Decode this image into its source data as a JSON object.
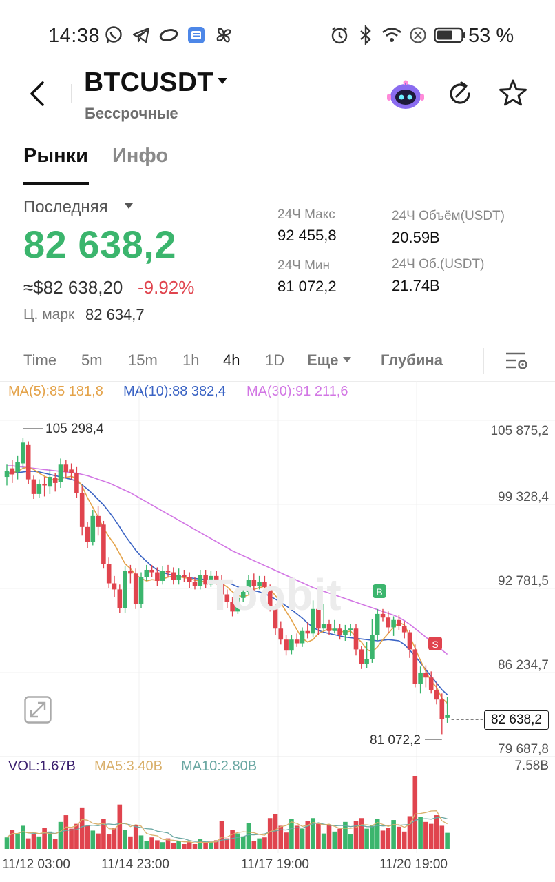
{
  "status_bar": {
    "time": "14:38",
    "battery": "53 %",
    "icons": [
      "whatsapp-icon",
      "telegram-icon",
      "ring-icon",
      "notes-app-icon",
      "pinwheel-icon",
      "alarm-icon",
      "bluetooth-icon",
      "wifi-icon",
      "dnd-icon",
      "battery-icon"
    ]
  },
  "header": {
    "pair": "BTCUSDT",
    "subtitle": "Бессрочные"
  },
  "tabs": [
    {
      "label": "Рынки",
      "active": true
    },
    {
      "label": "Инфо",
      "active": false
    }
  ],
  "ticker": {
    "last_label": "Последняя",
    "price": "82 638,2",
    "price_usd": "≈$82 638,20",
    "change": "-9.92%",
    "mark_label": "Ц. марк",
    "mark_value": "82 634,7",
    "stats": {
      "high_label": "24Ч Макс",
      "high_value": "92 455,8",
      "low_label": "24Ч Мин",
      "low_value": "81 072,2",
      "vol_usdt_label": "24Ч Объём(USDT)",
      "vol_usdt_value": "20.59B",
      "turnover_label": "24Ч Об.(USDT)",
      "turnover_value": "21.74B"
    },
    "colors": {
      "up": "#3bb56d",
      "down": "#e0444e"
    }
  },
  "timeframes": [
    "Time",
    "5m",
    "15m",
    "1h",
    "4h",
    "1D"
  ],
  "active_timeframe": "4h",
  "more_label": "Еще",
  "depth_label": "Глубина",
  "chart_data": {
    "type": "candlestick",
    "ma_legend": {
      "ma5": "MA(5):85 181,8",
      "ma10": "MA(10):88 382,4",
      "ma30": "MA(30):91 211,6"
    },
    "price_axis": [
      "105 875,2",
      "99 328,4",
      "92 781,5",
      "86 234,7",
      "79 687,8"
    ],
    "ylim": [
      79687.8,
      105875.2
    ],
    "high_annotation": "105 298,4",
    "low_annotation": "81 072,2",
    "current_price": "82 638,2",
    "markers": [
      "B",
      "S"
    ],
    "watermark": "Toobit",
    "candles": [
      [
        102100,
        102600,
        103100,
        101400
      ],
      [
        102800,
        102300,
        103500,
        101600
      ],
      [
        102500,
        103300,
        103800,
        101900
      ],
      [
        103200,
        104900,
        105298.4,
        102800
      ],
      [
        104700,
        101900,
        105000,
        101500
      ],
      [
        101900,
        100700,
        102200,
        100300
      ],
      [
        100700,
        101500,
        101900,
        100400
      ],
      [
        101500,
        101400,
        102100,
        100500
      ],
      [
        101300,
        102100,
        102700,
        100700
      ],
      [
        102000,
        101600,
        102400,
        100900
      ],
      [
        101700,
        103100,
        103600,
        101200
      ],
      [
        103100,
        102500,
        103500,
        102000
      ],
      [
        102700,
        102400,
        103200,
        101900
      ],
      [
        102400,
        100800,
        102900,
        100400
      ],
      [
        100800,
        98000,
        101300,
        97300
      ],
      [
        98000,
        96800,
        98400,
        96300
      ],
      [
        96800,
        98900,
        99400,
        96500
      ],
      [
        98900,
        98000,
        99700,
        97300
      ],
      [
        98200,
        95000,
        98500,
        94600
      ],
      [
        95000,
        93400,
        95500,
        93000
      ],
      [
        93400,
        92900,
        94000,
        92300
      ],
      [
        92900,
        91400,
        93300,
        91000
      ],
      [
        91400,
        94400,
        94800,
        91000
      ],
      [
        94400,
        94200,
        94900,
        93400
      ],
      [
        94200,
        91700,
        94600,
        91300
      ],
      [
        91700,
        93900,
        94300,
        91400
      ],
      [
        93900,
        94500,
        94900,
        93600
      ],
      [
        94500,
        94300,
        94900,
        93900
      ],
      [
        94300,
        93600,
        94700,
        93200
      ],
      [
        93600,
        94400,
        94800,
        93300
      ],
      [
        94400,
        94300,
        94900,
        93900
      ],
      [
        94300,
        93700,
        94700,
        93300
      ],
      [
        93700,
        94100,
        94600,
        93300
      ],
      [
        94100,
        93900,
        94500,
        93500
      ],
      [
        93900,
        93500,
        94300,
        93000
      ],
      [
        93500,
        93200,
        93900,
        92900
      ],
      [
        93200,
        94100,
        94500,
        92900
      ],
      [
        94100,
        93300,
        94500,
        93000
      ],
      [
        93300,
        94000,
        94400,
        93100
      ],
      [
        94000,
        93700,
        94400,
        93300
      ],
      [
        93700,
        92500,
        94100,
        92100
      ],
      [
        92500,
        91900,
        92900,
        91400
      ],
      [
        91900,
        91100,
        92300,
        90700
      ],
      [
        91100,
        92200,
        92600,
        90900
      ],
      [
        92200,
        92700,
        93200,
        91900
      ],
      [
        92700,
        93700,
        94100,
        92500
      ],
      [
        93700,
        93200,
        94200,
        92800
      ],
      [
        93200,
        93500,
        94000,
        92900
      ],
      [
        93500,
        93100,
        94000,
        92800
      ],
      [
        93100,
        91500,
        93300,
        91100
      ],
      [
        91300,
        89700,
        91700,
        89200
      ],
      [
        89700,
        88800,
        90300,
        88400
      ],
      [
        88800,
        87900,
        89200,
        87500
      ],
      [
        87900,
        88800,
        89200,
        87600
      ],
      [
        88800,
        88500,
        89300,
        88200
      ],
      [
        88500,
        89500,
        89800,
        88200
      ],
      [
        89500,
        89300,
        90200,
        88900
      ],
      [
        89300,
        91300,
        92000,
        89000
      ],
      [
        91300,
        89700,
        91600,
        89200
      ],
      [
        89700,
        90100,
        91700,
        89500
      ],
      [
        90100,
        89500,
        90400,
        89200
      ],
      [
        89500,
        89700,
        90400,
        89300
      ],
      [
        89700,
        89200,
        90100,
        88800
      ],
      [
        89200,
        89600,
        90000,
        88700
      ],
      [
        89600,
        89700,
        90100,
        89100
      ],
      [
        89700,
        88000,
        90100,
        87500
      ],
      [
        88000,
        86800,
        88300,
        86400
      ],
      [
        86800,
        87200,
        88600,
        86500
      ],
      [
        87200,
        89200,
        90500,
        86900
      ],
      [
        89200,
        90900,
        91300,
        88700
      ],
      [
        90900,
        90600,
        91300,
        90300
      ],
      [
        90600,
        89800,
        91100,
        89300
      ],
      [
        89800,
        90400,
        90700,
        89100
      ],
      [
        90400,
        89900,
        90800,
        89600
      ],
      [
        89900,
        89400,
        90300,
        88900
      ],
      [
        89400,
        88000,
        89600,
        87300
      ],
      [
        88000,
        85200,
        88400,
        84900
      ],
      [
        85200,
        86100,
        86600,
        84400
      ],
      [
        86100,
        85700,
        86700,
        84900
      ],
      [
        85700,
        84700,
        86200,
        84400
      ],
      [
        84700,
        83900,
        85300,
        83500
      ],
      [
        83900,
        82300,
        84400,
        81072.2
      ],
      [
        82400,
        82638.2,
        84100,
        82000
      ]
    ],
    "ma5": [
      102300,
      102450,
      102550,
      102800,
      102900,
      102700,
      102400,
      102150,
      101950,
      101800,
      101950,
      102050,
      102150,
      101950,
      101350,
      100400,
      99600,
      98800,
      97900,
      97200,
      96600,
      95800,
      95000,
      94600,
      94100,
      93800,
      93600,
      93700,
      93650,
      93750,
      93900,
      94000,
      93950,
      93850,
      93800,
      93650,
      93600,
      93500,
      93550,
      93600,
      93400,
      93100,
      92700,
      92400,
      92300,
      92450,
      92900,
      93050,
      93150,
      92900,
      92400,
      91800,
      91100,
      90400,
      89600,
      88900,
      88600,
      88800,
      89300,
      89500,
      89700,
      89600,
      89500,
      89400,
      89500,
      89000,
      88600,
      88000,
      87800,
      88200,
      88800,
      89300,
      89800,
      90200,
      90000,
      89100,
      88100,
      87100,
      86200,
      85400,
      84900,
      84000,
      83600
    ],
    "ma10": [
      102400,
      102450,
      102450,
      102500,
      102550,
      102550,
      102500,
      102400,
      102300,
      102200,
      102100,
      102000,
      101900,
      101750,
      101450,
      101100,
      100700,
      100250,
      99800,
      99250,
      98650,
      98000,
      97300,
      96700,
      96100,
      95600,
      95200,
      94800,
      94500,
      94300,
      94150,
      94050,
      93950,
      93900,
      93850,
      93800,
      93750,
      93700,
      93650,
      93600,
      93550,
      93450,
      93300,
      93100,
      92950,
      92850,
      92800,
      92700,
      92550,
      92350,
      92100,
      91850,
      91550,
      91250,
      90900,
      90550,
      90150,
      89800,
      89550,
      89400,
      89300,
      89200,
      89100,
      89000,
      88950,
      88900,
      88850,
      88800,
      88750,
      88700,
      88750,
      88800,
      88750,
      88700,
      88400,
      87950,
      87450,
      86900,
      86350,
      85800,
      85250,
      84700,
      84300
    ],
    "ma30": [
      103000,
      103000,
      102950,
      102900,
      102850,
      102800,
      102750,
      102700,
      102650,
      102600,
      102550,
      102500,
      102450,
      102400,
      102300,
      102200,
      102050,
      101900,
      101750,
      101600,
      101400,
      101200,
      101000,
      100800,
      100550,
      100300,
      100050,
      99800,
      99550,
      99300,
      99050,
      98800,
      98550,
      98300,
      98050,
      97800,
      97550,
      97300,
      97050,
      96800,
      96550,
      96300,
      96050,
      95850,
      95650,
      95450,
      95250,
      95050,
      94850,
      94650,
      94450,
      94250,
      94050,
      93850,
      93650,
      93450,
      93250,
      93050,
      92900,
      92750,
      92600,
      92450,
      92300,
      92150,
      92000,
      91850,
      91700,
      91550,
      91400,
      91250,
      91100,
      90950,
      90800,
      90600,
      90350,
      90050,
      89700,
      89350,
      89000,
      88650,
      88300,
      87950,
      87600
    ],
    "volume_legend": {
      "vol": "VOL:1.67B",
      "ma5": "MA5:3.40B",
      "ma10": "MA10:2.80B"
    },
    "volume_max_label": "7.58B",
    "volume_max": 7.58,
    "volumes": [
      1.2,
      2.0,
      1.6,
      2.4,
      1.1,
      1.5,
      1.3,
      2.2,
      1.8,
      1.0,
      2.8,
      3.5,
      2.1,
      2.6,
      4.3,
      2.4,
      1.9,
      1.6,
      3.1,
      1.5,
      2.2,
      4.6,
      2.0,
      1.3,
      2.5,
      1.4,
      0.8,
      1.2,
      0.9,
      0.7,
      1.1,
      0.6,
      0.8,
      0.5,
      0.7,
      0.5,
      1.0,
      0.6,
      0.7,
      0.9,
      2.9,
      1.1,
      2.0,
      1.6,
      1.3,
      2.7,
      0.8,
      1.1,
      1.2,
      3.2,
      3.6,
      2.4,
      1.7,
      3.1,
      2.4,
      2.1,
      2.9,
      3.2,
      2.6,
      1.6,
      2.5,
      1.8,
      2.1,
      2.8,
      1.5,
      2.9,
      3.2,
      2.1,
      2.4,
      3.1,
      1.9,
      2.2,
      3.0,
      2.3,
      1.8,
      3.4,
      7.58,
      3.3,
      2.8,
      2.6,
      3.5,
      2.4,
      1.67
    ],
    "dates": [
      "11/12 03:00",
      "11/14 23:00",
      "11/17 19:00",
      "11/20 19:00"
    ],
    "colors": {
      "ma5": "#e4a34a",
      "ma10": "#3a63c4",
      "ma30": "#d276e4",
      "vol": "#3a1f6e",
      "vma5": "#d9b06c",
      "vma10": "#6aa7a2"
    }
  }
}
